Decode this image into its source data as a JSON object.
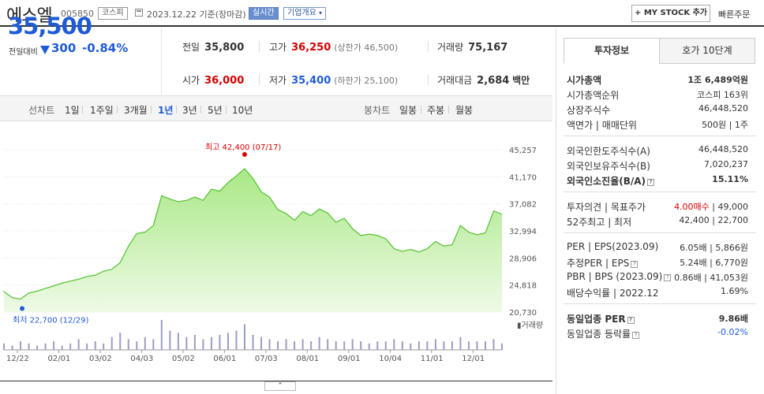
{
  "header": {
    "name": "에스엘",
    "code": "005850",
    "market": "코스피",
    "date": "2023.12.22  기준(장마감)",
    "live": "실시간",
    "company_info": "기업개요",
    "mystock": "+ MY STOCK 추가",
    "quick_order": "빠른주문"
  },
  "price": {
    "current": "35,500",
    "change_label": "전일대비",
    "change": "300",
    "rate": "-0.84%"
  },
  "stats": {
    "prev_label": "전일",
    "prev": "35,800",
    "high_label": "고가",
    "high": "36,250",
    "upper_limit": "(상한가 46,500)",
    "volume_label": "거래량",
    "volume": "75,167",
    "open_label": "시가",
    "open": "36,000",
    "low_label": "저가",
    "low": "35,400",
    "lower_limit": "(하한가 25,100)",
    "amount_label": "거래대금",
    "amount": "2,684",
    "amount_unit": "백만"
  },
  "toolbar": {
    "line_label": "선차트",
    "periods": [
      "1일",
      "1주일",
      "3개월",
      "1년",
      "3년",
      "5년",
      "10년"
    ],
    "active_period": "1년",
    "candle_label": "봉차트",
    "candles": [
      "일봉",
      "주봉",
      "월봉"
    ]
  },
  "chart_data": {
    "type": "area",
    "y_ticks": [
      "45,257",
      "41,170",
      "37,082",
      "32,994",
      "28,906",
      "24,818",
      "20,730"
    ],
    "ylim": [
      20730,
      45257
    ],
    "x_ticks": [
      "12/22",
      "02/01",
      "03/02",
      "04/03",
      "05/02",
      "06/01",
      "07/03",
      "08/01",
      "09/01",
      "10/04",
      "11/01",
      "12/01"
    ],
    "max_label": "최고 42,400 (07/17)",
    "min_label": "최저 22,700 (12/29)",
    "volume_label": "거래량",
    "values": [
      23800,
      22900,
      22700,
      23600,
      23900,
      24300,
      24700,
      25100,
      25400,
      25700,
      26100,
      26300,
      26900,
      27200,
      28200,
      30700,
      32600,
      32800,
      33800,
      38300,
      37800,
      37400,
      37600,
      38100,
      37600,
      39300,
      39000,
      40300,
      41300,
      42400,
      40900,
      38900,
      38100,
      36200,
      35600,
      34600,
      35900,
      35300,
      36300,
      35700,
      34300,
      34900,
      33300,
      32300,
      32500,
      32300,
      31800,
      30300,
      29900,
      30200,
      29800,
      30300,
      31400,
      30700,
      30900,
      33800,
      32800,
      32400,
      32700,
      36000,
      35500
    ],
    "volumes": [
      3,
      2,
      4,
      3,
      2,
      3,
      4,
      2,
      3,
      5,
      3,
      4,
      3,
      6,
      8,
      5,
      4,
      6,
      5,
      14,
      9,
      8,
      6,
      7,
      5,
      6,
      7,
      8,
      9,
      12,
      7,
      6,
      5,
      4,
      5,
      4,
      5,
      4,
      6,
      5,
      4,
      4,
      5,
      4,
      3,
      4,
      4,
      5,
      4,
      3,
      4,
      4,
      5,
      4,
      4,
      6,
      4,
      4,
      4,
      5,
      3
    ]
  },
  "invest": {
    "tabs": [
      "투자정보",
      "호가 10단계"
    ],
    "rows": [
      {
        "k": "시가총액",
        "v": "1조 6,489억원"
      },
      {
        "k": "시가총액순위",
        "v": "코스피 163위"
      },
      {
        "k": "상장주식수",
        "v": "46,448,520"
      },
      {
        "k": "액면가 | 매매단위",
        "v": "500원 | 1주"
      },
      {
        "k": "외국인한도주식수(A)",
        "v": "46,448,520"
      },
      {
        "k": "외국인보유주식수(B)",
        "v": "7,020,237"
      },
      {
        "k": "외국인소진율(B/A)",
        "v": "15.11%"
      },
      {
        "k": "투자의견 | 목표주가",
        "v_red": "4.00매수",
        "v": "| 49,000"
      },
      {
        "k": "52주최고 | 최저",
        "v": "42,400 | 22,700"
      },
      {
        "k": "PER | EPS(2023.09)",
        "v": "6.05배 | 5,866원"
      },
      {
        "k": "추정PER | EPS",
        "v": "5.24배 | 6,770원"
      },
      {
        "k": "PBR | BPS (2023.09)",
        "v": "0.86배 | 41,053원"
      },
      {
        "k": "배당수익률 | 2022.12",
        "v": "1.69%"
      },
      {
        "k": "동일업종 PER",
        "v": "9.86배"
      },
      {
        "k": "동일업종 등락률",
        "v": "-0.02%"
      }
    ]
  },
  "colors": {
    "down": "#1f5bd6",
    "up": "#d60000",
    "area": "#b9ec9a",
    "line": "#5cc43a"
  }
}
